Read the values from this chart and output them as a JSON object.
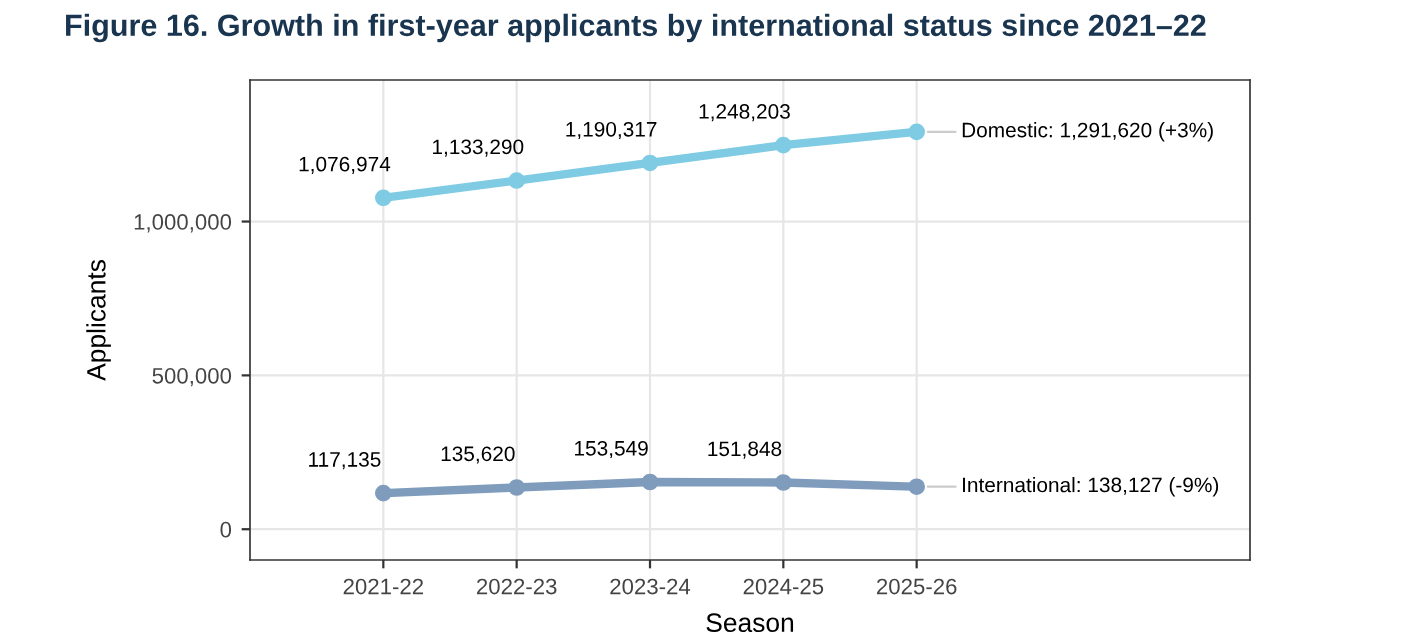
{
  "chart_data": {
    "type": "line",
    "title": "Figure 16. Growth in first-year applicants by international status since 2021–22",
    "xlabel": "Season",
    "ylabel": "Applicants",
    "categories": [
      "2021-22",
      "2022-23",
      "2023-24",
      "2024-25",
      "2025-26"
    ],
    "series": [
      {
        "color": "#7ecbe3",
        "values": [
          1076974,
          1133290,
          1190317,
          1248203,
          1291620
        ],
        "value_labels": [
          "1,076,974",
          "1,133,290",
          "1,190,317",
          "1,248,203",
          null
        ]
      },
      {
        "color": "#7f9cbd",
        "values": [
          117135,
          135620,
          153549,
          151848,
          138127
        ],
        "value_labels": [
          "117,135",
          "135,620",
          "153,549",
          "151,848",
          null
        ]
      }
    ],
    "annotations": [
      {
        "text": "Domestic: 1,291,620 (+3%)",
        "x": "2025-26",
        "y": 1291620
      },
      {
        "text": "International: 138,127 (-9%)",
        "x": "2025-26",
        "y": 138127
      }
    ],
    "ylim": [
      -100000,
      1460000
    ],
    "yticks": [
      {
        "value": 0,
        "label": "0"
      },
      {
        "value": 500000,
        "label": "500,000"
      },
      {
        "value": 1000000,
        "label": "1,000,000"
      }
    ],
    "grid": true,
    "legend": false,
    "marker": "circle",
    "line_style": "solid"
  }
}
